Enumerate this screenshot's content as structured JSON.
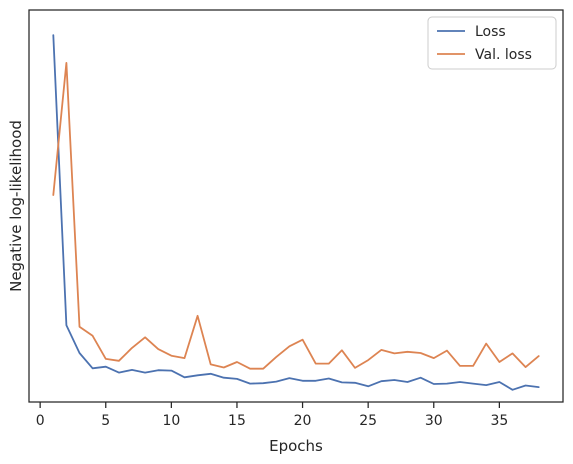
{
  "chart_data": {
    "type": "line",
    "title": "",
    "xlabel": "Epochs",
    "ylabel": "Negative log-likelihood",
    "xlim": [
      -0.85,
      39.85
    ],
    "ylim": [
      0,
      100
    ],
    "xticks": [
      0,
      5,
      10,
      15,
      20,
      25,
      30,
      35
    ],
    "yticks_shown": false,
    "grid": false,
    "legend": {
      "placement": "top-right"
    },
    "x": [
      1,
      2,
      3,
      4,
      5,
      6,
      7,
      8,
      9,
      10,
      11,
      12,
      13,
      14,
      15,
      16,
      17,
      18,
      19,
      20,
      21,
      22,
      23,
      24,
      25,
      26,
      27,
      28,
      29,
      30,
      31,
      32,
      33,
      34,
      35,
      36,
      37,
      38
    ],
    "series": [
      {
        "name": "Loss",
        "color": "#4c72b0",
        "values": [
          93.6,
          19.6,
          12.5,
          8.6,
          9.0,
          7.5,
          8.2,
          7.5,
          8.1,
          8.0,
          6.3,
          6.8,
          7.2,
          6.2,
          5.9,
          4.7,
          4.8,
          5.2,
          6.1,
          5.4,
          5.4,
          6.0,
          5.0,
          4.9,
          4.0,
          5.3,
          5.6,
          5.1,
          6.2,
          4.6,
          4.7,
          5.1,
          4.7,
          4.3,
          5.1,
          3.1,
          4.2,
          3.8
        ]
      },
      {
        "name": "Val. loss",
        "color": "#dd8452",
        "values": [
          52.8,
          86.5,
          19.2,
          16.9,
          11.0,
          10.5,
          13.8,
          16.5,
          13.5,
          11.8,
          11.2,
          22.0,
          9.6,
          8.8,
          10.2,
          8.5,
          8.5,
          11.5,
          14.2,
          15.9,
          9.8,
          9.8,
          13.2,
          8.7,
          10.7,
          13.3,
          12.4,
          12.8,
          12.5,
          11.2,
          13.1,
          9.2,
          9.2,
          14.9,
          10.2,
          12.4,
          8.9,
          11.7
        ]
      }
    ]
  },
  "colors": {
    "axes_edge": "#262626",
    "background": "#ffffff"
  }
}
